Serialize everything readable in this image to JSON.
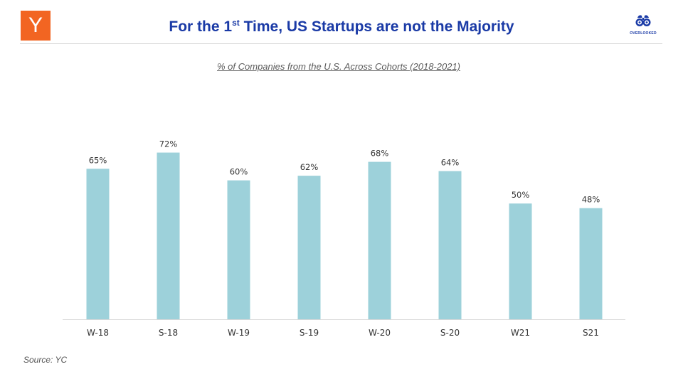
{
  "header": {
    "logo_letter": "Y",
    "title_pre": "For the 1",
    "title_sup": "st",
    "title_post": " Time, US Startups are not the Majority",
    "brand_name": "OVERLOOKED"
  },
  "colors": {
    "accent": "#1a3aa6",
    "logo": "#f26522",
    "bar": "#9dd1da"
  },
  "chart_data": {
    "type": "bar",
    "title": "% of Companies from the U.S. Across Cohorts (2018-2021)",
    "categories": [
      "W-18",
      "S-18",
      "W-19",
      "S-19",
      "W-20",
      "S-20",
      "W21",
      "S21"
    ],
    "values": [
      65,
      72,
      60,
      62,
      68,
      64,
      50,
      48
    ],
    "labels": [
      "65%",
      "72%",
      "60%",
      "62%",
      "68%",
      "64%",
      "50%",
      "48%"
    ],
    "ylim": [
      0,
      100
    ],
    "grid": false,
    "xlabel": "",
    "ylabel": ""
  },
  "footer": {
    "source": "Source: YC"
  }
}
